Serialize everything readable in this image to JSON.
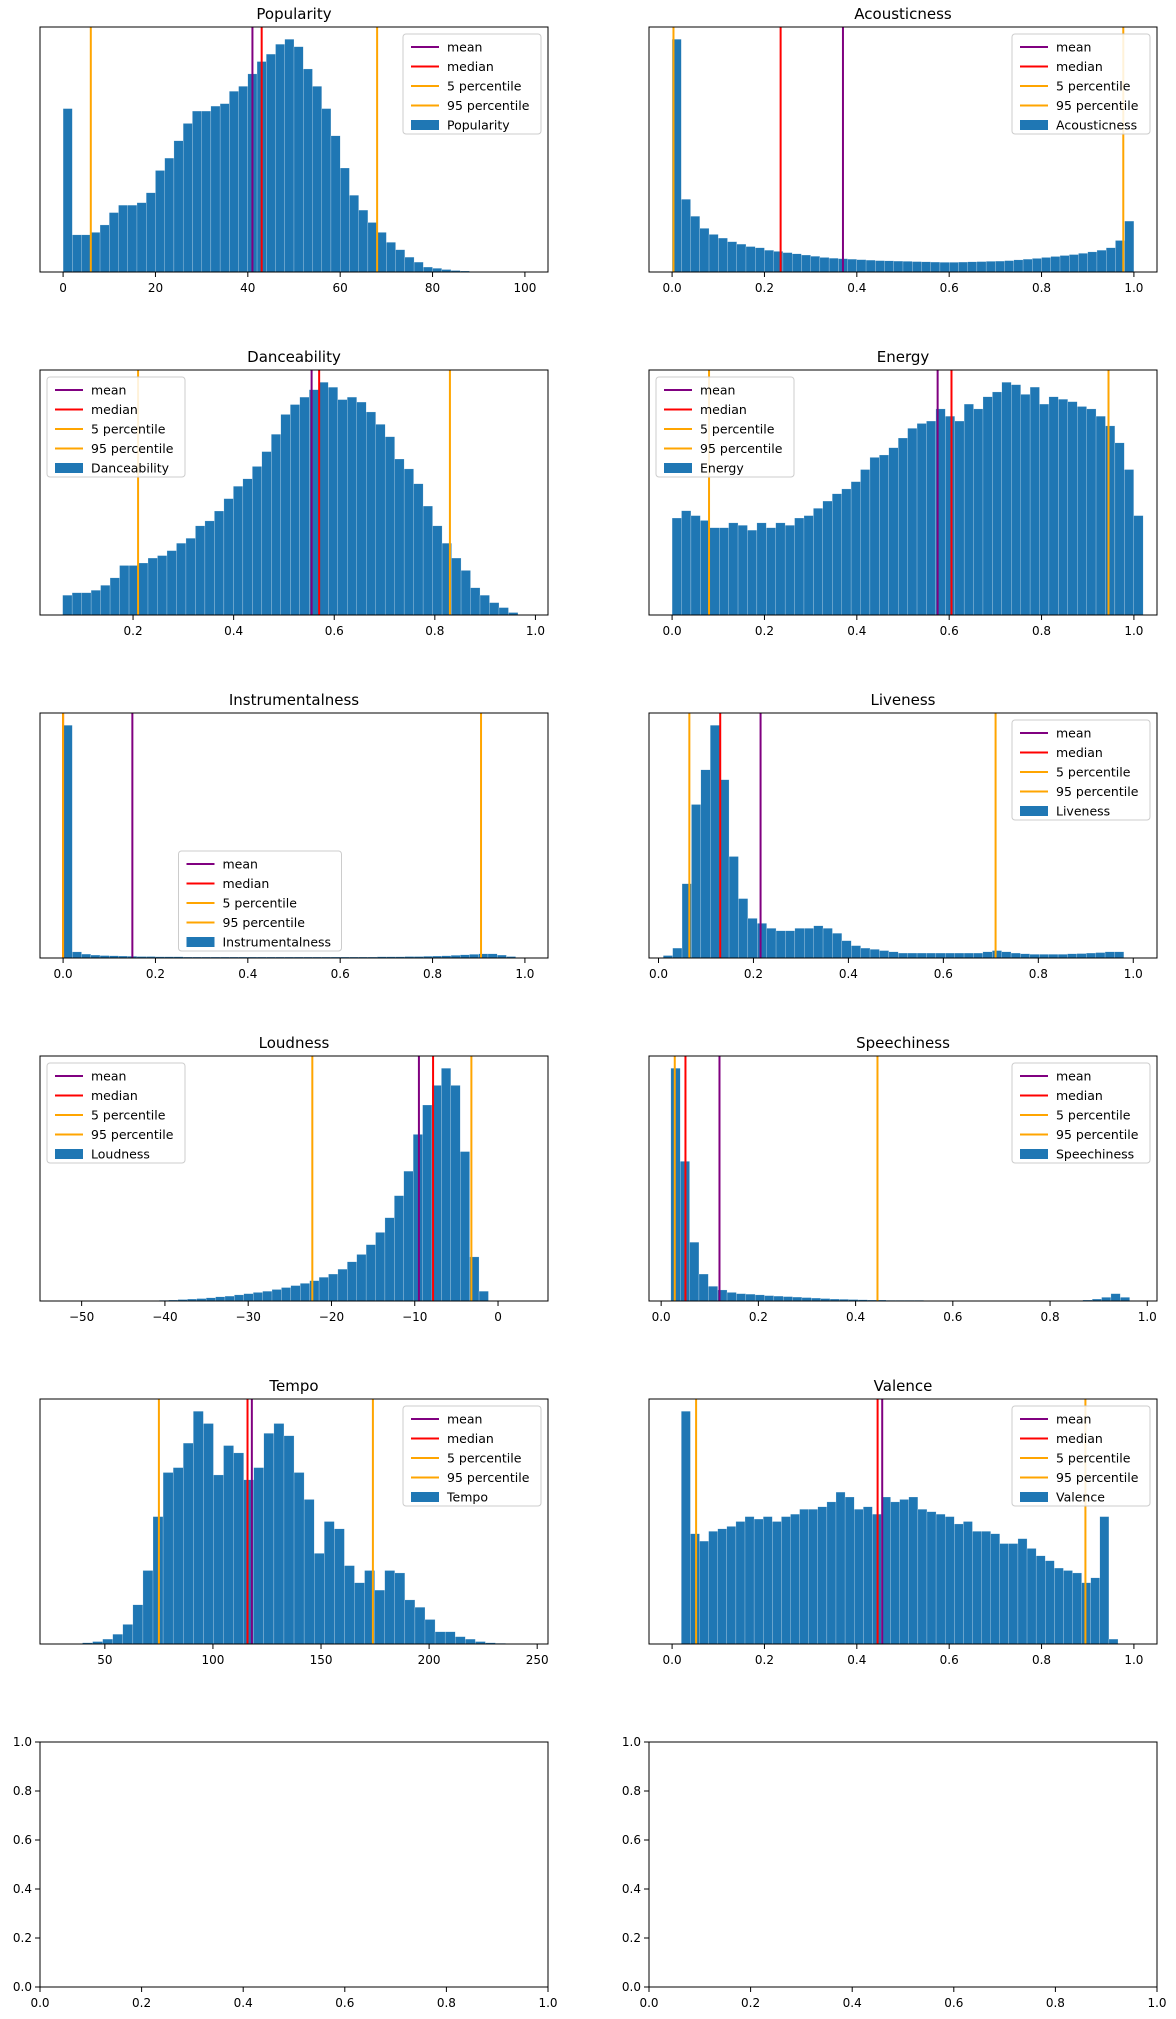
{
  "figure": {
    "colors": {
      "bars": "#1f77b4",
      "mean": "#800080",
      "median": "#ff0000",
      "p5": "#ffa500",
      "p95": "#ffa500"
    }
  },
  "chart_data": [
    {
      "type": "bar",
      "title": "Popularity",
      "series_name": "Popularity",
      "legend_loc": "top-right",
      "legend_labels": [
        "mean",
        "median",
        "5 percentile",
        "95 percentile",
        "Popularity"
      ],
      "xlim": [
        -5,
        105
      ],
      "xticks": [
        0,
        20,
        40,
        60,
        80,
        100
      ],
      "xtick_labels": [
        "0",
        "20",
        "40",
        "60",
        "80",
        "100"
      ],
      "bin_start": 0,
      "bin_width": 2,
      "values": [
        0.66,
        0.15,
        0.15,
        0.16,
        0.19,
        0.24,
        0.27,
        0.27,
        0.28,
        0.32,
        0.41,
        0.46,
        0.53,
        0.6,
        0.65,
        0.65,
        0.67,
        0.68,
        0.73,
        0.75,
        0.8,
        0.85,
        0.88,
        0.92,
        0.94,
        0.91,
        0.82,
        0.75,
        0.66,
        0.55,
        0.42,
        0.31,
        0.25,
        0.2,
        0.16,
        0.12,
        0.09,
        0.06,
        0.04,
        0.02,
        0.015,
        0.01,
        0.006,
        0.004,
        0.002,
        0.001,
        0.0005,
        0.0003,
        0.0002,
        0.0001
      ],
      "stats": {
        "mean": 41,
        "median": 43,
        "p5": 6,
        "p95": 68
      }
    },
    {
      "type": "bar",
      "title": "Acousticness",
      "series_name": "Acousticness",
      "legend_loc": "top-right",
      "legend_labels": [
        "mean",
        "median",
        "5 percentile",
        "95 percentile",
        "Acousticness"
      ],
      "xlim": [
        -0.05,
        1.05
      ],
      "xticks": [
        0,
        0.2,
        0.4,
        0.6,
        0.8,
        1.0
      ],
      "xtick_labels": [
        "0.0",
        "0.2",
        "0.4",
        "0.6",
        "0.8",
        "1.0"
      ],
      "bin_start": 0,
      "bin_width": 0.02,
      "values": [
        0.96,
        0.3,
        0.23,
        0.18,
        0.155,
        0.14,
        0.125,
        0.115,
        0.105,
        0.1,
        0.09,
        0.085,
        0.08,
        0.075,
        0.07,
        0.065,
        0.06,
        0.057,
        0.055,
        0.053,
        0.051,
        0.049,
        0.047,
        0.046,
        0.045,
        0.044,
        0.043,
        0.042,
        0.041,
        0.04,
        0.04,
        0.041,
        0.042,
        0.043,
        0.044,
        0.045,
        0.047,
        0.05,
        0.053,
        0.056,
        0.06,
        0.064,
        0.068,
        0.072,
        0.077,
        0.083,
        0.09,
        0.1,
        0.13,
        0.21
      ],
      "stats": {
        "mean": 0.37,
        "median": 0.235,
        "p5": 0.003,
        "p95": 0.977
      }
    },
    {
      "type": "bar",
      "title": "Danceability",
      "series_name": "Danceability",
      "legend_loc": "top-left",
      "legend_labels": [
        "mean",
        "median",
        "5 percentile",
        "95 percentile",
        "Danceability"
      ],
      "xlim": [
        0.015,
        1.025
      ],
      "xticks": [
        0.2,
        0.4,
        0.6,
        0.8,
        1.0
      ],
      "xtick_labels": [
        "0.2",
        "0.4",
        "0.6",
        "0.8",
        "1.0"
      ],
      "bin_start": 0.06,
      "bin_width": 0.01886,
      "values": [
        0.08,
        0.09,
        0.09,
        0.1,
        0.12,
        0.15,
        0.2,
        0.2,
        0.21,
        0.23,
        0.24,
        0.26,
        0.29,
        0.31,
        0.36,
        0.38,
        0.42,
        0.47,
        0.52,
        0.55,
        0.6,
        0.66,
        0.73,
        0.81,
        0.85,
        0.88,
        0.91,
        0.94,
        0.92,
        0.87,
        0.88,
        0.86,
        0.82,
        0.77,
        0.72,
        0.63,
        0.59,
        0.53,
        0.44,
        0.36,
        0.29,
        0.23,
        0.18,
        0.11,
        0.08,
        0.05,
        0.03,
        0.01
      ],
      "stats": {
        "mean": 0.555,
        "median": 0.57,
        "p5": 0.21,
        "p95": 0.83
      }
    },
    {
      "type": "bar",
      "title": "Energy",
      "series_name": "Energy",
      "legend_loc": "top-left",
      "legend_labels": [
        "mean",
        "median",
        "5 percentile",
        "95 percentile",
        "Energy"
      ],
      "xlim": [
        -0.05,
        1.05
      ],
      "xticks": [
        0,
        0.2,
        0.4,
        0.6,
        0.8,
        1.0
      ],
      "xtick_labels": [
        "0.0",
        "0.2",
        "0.4",
        "0.6",
        "0.8",
        "1.0"
      ],
      "bin_start": 0,
      "bin_width": 0.0204,
      "values": [
        0.4,
        0.43,
        0.41,
        0.39,
        0.36,
        0.36,
        0.38,
        0.37,
        0.35,
        0.38,
        0.36,
        0.38,
        0.37,
        0.4,
        0.41,
        0.44,
        0.47,
        0.5,
        0.52,
        0.55,
        0.6,
        0.65,
        0.66,
        0.69,
        0.73,
        0.77,
        0.79,
        0.8,
        0.85,
        0.82,
        0.8,
        0.87,
        0.85,
        0.9,
        0.92,
        0.96,
        0.95,
        0.91,
        0.94,
        0.87,
        0.9,
        0.89,
        0.88,
        0.86,
        0.85,
        0.82,
        0.78,
        0.71,
        0.6,
        0.41
      ],
      "stats": {
        "mean": 0.575,
        "median": 0.605,
        "p5": 0.08,
        "p95": 0.945
      }
    },
    {
      "type": "bar",
      "title": "Instrumentalness",
      "series_name": "Instrumentalness",
      "legend_loc": "bottom-center",
      "legend_labels": [
        "mean",
        "median",
        "5 percentile",
        "95 percentile",
        "Instrumentalness"
      ],
      "xlim": [
        -0.05,
        1.05
      ],
      "xticks": [
        0,
        0.2,
        0.4,
        0.6,
        0.8,
        1.0
      ],
      "xtick_labels": [
        "0.0",
        "0.2",
        "0.4",
        "0.6",
        "0.8",
        "1.0"
      ],
      "bin_start": 0,
      "bin_width": 0.02,
      "values": [
        0.95,
        0.025,
        0.016,
        0.012,
        0.01,
        0.009,
        0.008,
        0.007,
        0.006,
        0.006,
        0.005,
        0.005,
        0.005,
        0.004,
        0.004,
        0.004,
        0.004,
        0.004,
        0.004,
        0.004,
        0.004,
        0.004,
        0.004,
        0.004,
        0.004,
        0.004,
        0.004,
        0.004,
        0.004,
        0.004,
        0.004,
        0.004,
        0.004,
        0.004,
        0.005,
        0.005,
        0.005,
        0.006,
        0.006,
        0.007,
        0.008,
        0.009,
        0.011,
        0.013,
        0.015,
        0.017,
        0.017,
        0.012,
        0.006,
        0.002
      ],
      "stats": {
        "mean": 0.15,
        "median": 0.0,
        "p5": 0.0,
        "p95": 0.905
      }
    },
    {
      "type": "bar",
      "title": "Liveness",
      "series_name": "Liveness",
      "legend_loc": "top-right",
      "legend_labels": [
        "mean",
        "median",
        "5 percentile",
        "95 percentile",
        "Liveness"
      ],
      "xlim": [
        -0.02,
        1.05
      ],
      "xticks": [
        0,
        0.2,
        0.4,
        0.6,
        0.8,
        1.0
      ],
      "xtick_labels": [
        "0.0",
        "0.2",
        "0.4",
        "0.6",
        "0.8",
        "1.0"
      ],
      "bin_start": 0.01,
      "bin_width": 0.0198,
      "values": [
        0.01,
        0.04,
        0.3,
        0.62,
        0.76,
        0.94,
        0.72,
        0.41,
        0.24,
        0.16,
        0.14,
        0.12,
        0.11,
        0.11,
        0.12,
        0.12,
        0.13,
        0.12,
        0.1,
        0.07,
        0.05,
        0.04,
        0.035,
        0.03,
        0.025,
        0.02,
        0.02,
        0.02,
        0.02,
        0.02,
        0.02,
        0.02,
        0.02,
        0.02,
        0.025,
        0.03,
        0.025,
        0.02,
        0.017,
        0.015,
        0.015,
        0.015,
        0.015,
        0.017,
        0.018,
        0.02,
        0.022,
        0.025,
        0.025
      ],
      "stats": {
        "mean": 0.215,
        "median": 0.13,
        "p5": 0.065,
        "p95": 0.71
      }
    },
    {
      "type": "bar",
      "title": "Loudness",
      "series_name": "Loudness",
      "legend_loc": "top-left",
      "legend_labels": [
        "mean",
        "median",
        "5 percentile",
        "95 percentile",
        "Loudness"
      ],
      "xlim": [
        -55,
        6
      ],
      "xticks": [
        -50,
        -40,
        -30,
        -20,
        -10,
        0
      ],
      "xtick_labels": [
        "−50",
        "−40",
        "−30",
        "−20",
        "−10",
        "0"
      ],
      "bin_start": -52,
      "bin_width": 1.13,
      "values": [
        0,
        0,
        0,
        0,
        0,
        0,
        0,
        0,
        0.001,
        0.002,
        0.003,
        0.004,
        0.006,
        0.008,
        0.01,
        0.013,
        0.017,
        0.02,
        0.025,
        0.03,
        0.035,
        0.04,
        0.047,
        0.055,
        0.063,
        0.072,
        0.083,
        0.097,
        0.11,
        0.13,
        0.16,
        0.19,
        0.23,
        0.28,
        0.34,
        0.43,
        0.53,
        0.68,
        0.8,
        0.88,
        0.95,
        0.88,
        0.61,
        0.18,
        0.04
      ],
      "stats": {
        "mean": -9.5,
        "median": -7.8,
        "p5": -22.3,
        "p95": -3.2
      }
    },
    {
      "type": "bar",
      "title": "Speechiness",
      "series_name": "Speechiness",
      "legend_loc": "top-right",
      "legend_labels": [
        "mean",
        "median",
        "5 percentile",
        "95 percentile",
        "Speechiness"
      ],
      "xlim": [
        -0.025,
        1.02
      ],
      "xticks": [
        0,
        0.2,
        0.4,
        0.6,
        0.8,
        1.0
      ],
      "xtick_labels": [
        "0.0",
        "0.2",
        "0.4",
        "0.6",
        "0.8",
        "1.0"
      ],
      "bin_start": 0.02,
      "bin_width": 0.01926,
      "values": [
        0.95,
        0.57,
        0.24,
        0.11,
        0.06,
        0.045,
        0.035,
        0.03,
        0.028,
        0.025,
        0.022,
        0.02,
        0.018,
        0.016,
        0.014,
        0.012,
        0.01,
        0.008,
        0.007,
        0.006,
        0.005,
        0.004,
        0.004,
        0.003,
        0.003,
        0.003,
        0.003,
        0.002,
        0.002,
        0.002,
        0.002,
        0.002,
        0.002,
        0.002,
        0.002,
        0.002,
        0.002,
        0.002,
        0.002,
        0.002,
        0.002,
        0.002,
        0.002,
        0.002,
        0.004,
        0.008,
        0.015,
        0.03,
        0.015
      ],
      "stats": {
        "mean": 0.12,
        "median": 0.05,
        "p5": 0.028,
        "p95": 0.445
      }
    },
    {
      "type": "bar",
      "title": "Tempo",
      "series_name": "Tempo",
      "legend_loc": "top-right",
      "legend_labels": [
        "mean",
        "median",
        "5 percentile",
        "95 percentile",
        "Tempo"
      ],
      "xlim": [
        20,
        255
      ],
      "xticks": [
        50,
        100,
        150,
        200,
        250
      ],
      "xtick_labels": [
        "50",
        "100",
        "150",
        "200",
        "250"
      ],
      "bin_start": 35,
      "bin_width": 4.66,
      "values": [
        0.002,
        0.005,
        0.01,
        0.02,
        0.04,
        0.08,
        0.16,
        0.3,
        0.52,
        0.7,
        0.72,
        0.82,
        0.95,
        0.9,
        0.69,
        0.81,
        0.78,
        0.67,
        0.72,
        0.86,
        0.9,
        0.85,
        0.7,
        0.59,
        0.37,
        0.5,
        0.47,
        0.32,
        0.25,
        0.3,
        0.22,
        0.3,
        0.29,
        0.18,
        0.15,
        0.1,
        0.05,
        0.05,
        0.03,
        0.02,
        0.01,
        0.005,
        0.003,
        0.002,
        0.001,
        0.001
      ],
      "stats": {
        "mean": 118,
        "median": 116,
        "p5": 75,
        "p95": 174
      }
    },
    {
      "type": "bar",
      "title": "Valence",
      "series_name": "Valence",
      "legend_loc": "top-right",
      "legend_labels": [
        "mean",
        "median",
        "5 percentile",
        "95 percentile",
        "Valence"
      ],
      "xlim": [
        -0.05,
        1.05
      ],
      "xticks": [
        0,
        0.2,
        0.4,
        0.6,
        0.8,
        1.0
      ],
      "xtick_labels": [
        "0.0",
        "0.2",
        "0.4",
        "0.6",
        "0.8",
        "1.0"
      ],
      "bin_start": 0.02,
      "bin_width": 0.0197,
      "values": [
        0.95,
        0.45,
        0.42,
        0.46,
        0.47,
        0.48,
        0.5,
        0.52,
        0.51,
        0.52,
        0.5,
        0.52,
        0.53,
        0.55,
        0.55,
        0.56,
        0.58,
        0.62,
        0.6,
        0.55,
        0.56,
        0.53,
        0.6,
        0.58,
        0.59,
        0.6,
        0.55,
        0.54,
        0.53,
        0.52,
        0.49,
        0.5,
        0.46,
        0.46,
        0.45,
        0.41,
        0.41,
        0.43,
        0.39,
        0.36,
        0.34,
        0.31,
        0.3,
        0.29,
        0.25,
        0.27,
        0.52,
        0.02
      ],
      "stats": {
        "mean": 0.455,
        "median": 0.445,
        "p5": 0.052,
        "p95": 0.895
      }
    },
    {
      "type": "empty",
      "title": "",
      "xlim": [
        0,
        1
      ],
      "ylim": [
        0,
        1
      ],
      "xticks": [
        0,
        0.2,
        0.4,
        0.6,
        0.8,
        1.0
      ],
      "xtick_labels": [
        "0.0",
        "0.2",
        "0.4",
        "0.6",
        "0.8",
        "1.0"
      ],
      "yticks": [
        0,
        0.2,
        0.4,
        0.6,
        0.8,
        1.0
      ],
      "ytick_labels": [
        "0.0",
        "0.2",
        "0.4",
        "0.6",
        "0.8",
        "1.0"
      ]
    },
    {
      "type": "empty",
      "title": "",
      "xlim": [
        0,
        1
      ],
      "ylim": [
        0,
        1
      ],
      "xticks": [
        0,
        0.2,
        0.4,
        0.6,
        0.8,
        1.0
      ],
      "xtick_labels": [
        "0.0",
        "0.2",
        "0.4",
        "0.6",
        "0.8",
        "1.0"
      ],
      "yticks": [
        0,
        0.2,
        0.4,
        0.6,
        0.8,
        1.0
      ],
      "ytick_labels": [
        "0.0",
        "0.2",
        "0.4",
        "0.6",
        "0.8",
        "1.0"
      ]
    }
  ]
}
